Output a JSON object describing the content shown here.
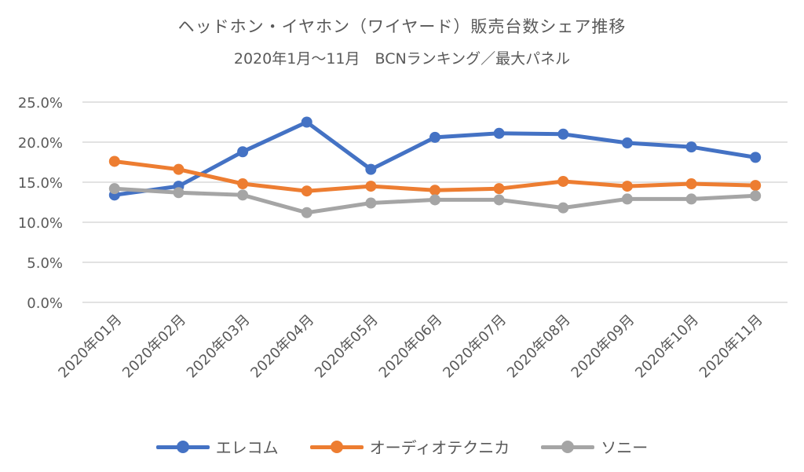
{
  "chart_data": {
    "type": "line",
    "title": "ヘッドホン・イヤホン（ワイヤード）販売台数シェア推移",
    "subtitle": "2020年1月～11月　BCNランキング／最大パネル",
    "categories": [
      "2020年01月",
      "2020年02月",
      "2020年03月",
      "2020年04月",
      "2020年05月",
      "2020年06月",
      "2020年07月",
      "2020年08月",
      "2020年09月",
      "2020年10月",
      "2020年11月"
    ],
    "y_ticks": [
      "0.0%",
      "5.0%",
      "10.0%",
      "15.0%",
      "20.0%",
      "25.0%"
    ],
    "ylim": [
      0,
      25
    ],
    "y_unit": "%",
    "grid": true,
    "legend_position": "bottom",
    "series": [
      {
        "name": "エレコム",
        "color": "#4472C4",
        "values": [
          13.4,
          14.5,
          18.8,
          22.5,
          16.6,
          20.6,
          21.1,
          21.0,
          19.9,
          19.4,
          18.1
        ]
      },
      {
        "name": "オーディオテクニカ",
        "color": "#ED7D31",
        "values": [
          17.6,
          16.6,
          14.8,
          13.9,
          14.5,
          14.0,
          14.2,
          15.1,
          14.5,
          14.8,
          14.6
        ]
      },
      {
        "name": "ソニー",
        "color": "#A5A5A5",
        "values": [
          14.2,
          13.7,
          13.4,
          11.2,
          12.4,
          12.8,
          12.8,
          11.8,
          12.9,
          12.9,
          13.3
        ]
      }
    ]
  }
}
